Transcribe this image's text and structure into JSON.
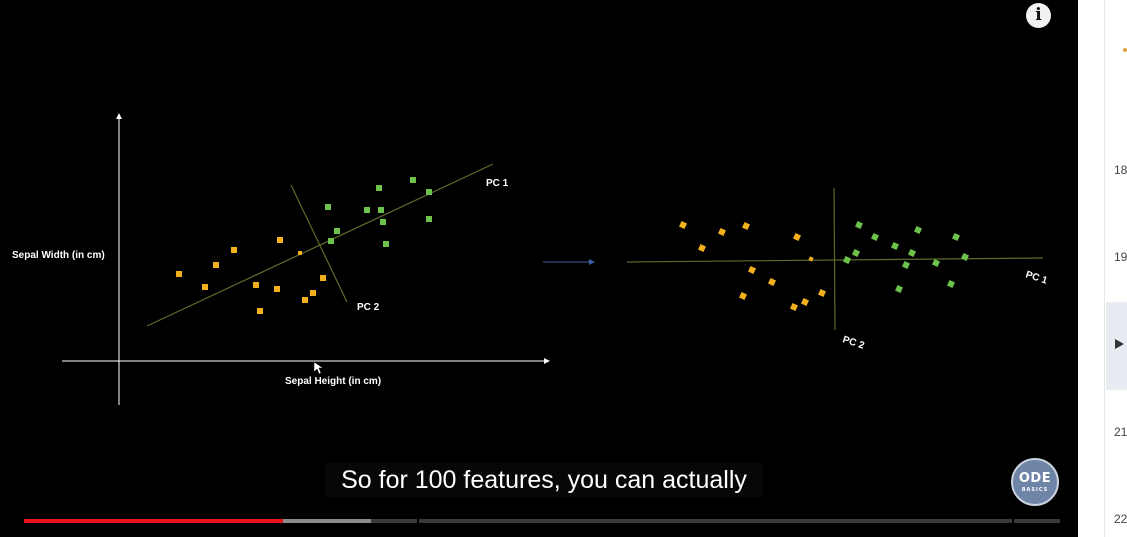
{
  "video": {
    "info_icon": "info-icon",
    "caption": "So for 100 features, you can actually",
    "channel_logo": {
      "top": "ODE",
      "bottom": "BASICS",
      "icon": "code-basics-logo"
    },
    "progress": {
      "played_fraction": 0.25,
      "buffered_fraction": 0.335
    }
  },
  "slide": {
    "left_plot": {
      "xlabel": "Sepal Height (in cm)",
      "ylabel": "Sepal Width (in cm)",
      "pc1_label": "PC 1",
      "pc2_label": "PC 2"
    },
    "right_plot": {
      "pc1_label": "PC 1",
      "pc2_label": "PC 2"
    },
    "colors": {
      "class_a": "#f2b01e",
      "class_b": "#6cc24a",
      "pc_line": "#5f6a2a",
      "axis": "#ffffff",
      "arrow": "#3a5fa8"
    }
  },
  "playlist": {
    "numbers": [
      "18",
      "19",
      "21",
      "22"
    ],
    "active_icon": "play-icon"
  }
}
